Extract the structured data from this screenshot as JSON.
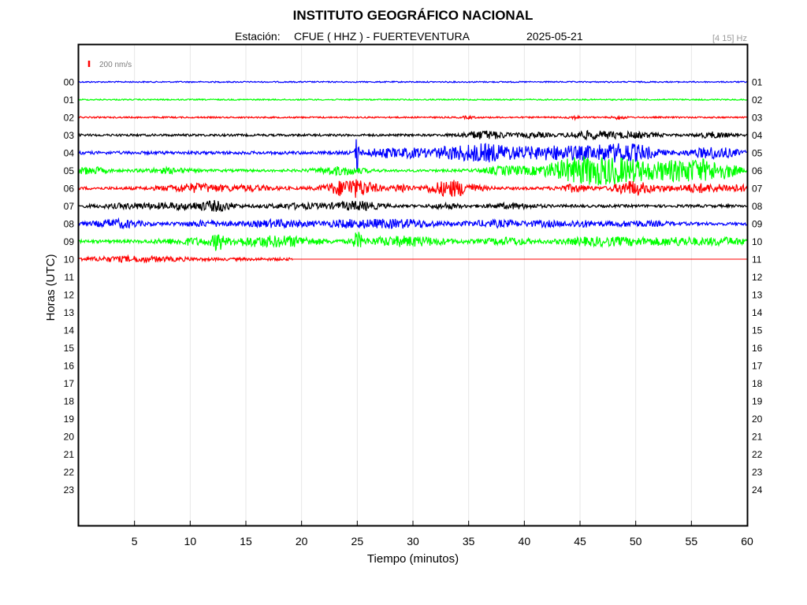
{
  "header": {
    "title": "INSTITUTO GEOGRÁFICO NACIONAL",
    "station_label": "Estación:",
    "station": "CFUE ( HHZ ) - FUERTEVENTURA",
    "date": "2025-05-21",
    "filter": "[4 15] Hz"
  },
  "scale_bar": {
    "label": "200 nm/s",
    "color": "#ff0000"
  },
  "chart_data": {
    "type": "line",
    "xlabel": "Tiempo (minutos)",
    "ylabel": "Horas (UTC)",
    "xlim": [
      0,
      60
    ],
    "x_ticks": [
      5,
      10,
      15,
      20,
      25,
      30,
      35,
      40,
      45,
      50,
      55,
      60
    ],
    "grid": true,
    "left_tick_labels": [
      "00",
      "01",
      "02",
      "03",
      "04",
      "05",
      "06",
      "07",
      "08",
      "09",
      "10",
      "11",
      "12",
      "13",
      "14",
      "15",
      "16",
      "17",
      "18",
      "19",
      "20",
      "21",
      "22",
      "23"
    ],
    "right_tick_labels": [
      "01",
      "02",
      "03",
      "04",
      "05",
      "06",
      "07",
      "08",
      "09",
      "10",
      "11",
      "12",
      "13",
      "14",
      "15",
      "16",
      "17",
      "18",
      "19",
      "20",
      "21",
      "22",
      "23",
      "24"
    ],
    "color_cycle": [
      "#0000ff",
      "#00ff00",
      "#ff0000",
      "#000000"
    ],
    "series": [
      {
        "hour": 0,
        "color": "#0000ff",
        "end_minute": 60,
        "base_amp": 0.25,
        "events": []
      },
      {
        "hour": 1,
        "color": "#00ff00",
        "end_minute": 60,
        "base_amp": 0.25,
        "events": []
      },
      {
        "hour": 2,
        "color": "#ff0000",
        "end_minute": 60,
        "base_amp": 0.3,
        "events": [
          [
            35,
            0.4,
            0.4
          ],
          [
            44.5,
            0.4,
            0.5
          ],
          [
            48.5,
            0.4,
            0.6
          ]
        ]
      },
      {
        "hour": 3,
        "color": "#000000",
        "end_minute": 60,
        "base_amp": 0.45,
        "events": [
          [
            36.5,
            1.5,
            1.5
          ],
          [
            41,
            1,
            0.8
          ],
          [
            45,
            1,
            1
          ],
          [
            47,
            1.2,
            1
          ],
          [
            50,
            1.5,
            0.9
          ],
          [
            57,
            1,
            1
          ]
        ]
      },
      {
        "hour": 4,
        "color": "#0000ff",
        "end_minute": 60,
        "base_amp": 0.6,
        "events": [
          [
            25,
            0.1,
            8
          ],
          [
            27.5,
            1.5,
            1.5
          ],
          [
            30,
            0.8,
            1
          ],
          [
            33,
            1.5,
            1.5
          ],
          [
            36.5,
            2,
            3
          ],
          [
            41,
            2,
            1.5
          ],
          [
            43.5,
            1.5,
            1.5
          ],
          [
            47.5,
            2,
            2.5
          ],
          [
            50,
            1.5,
            2
          ],
          [
            57,
            1.5,
            2
          ]
        ]
      },
      {
        "hour": 5,
        "color": "#00ff00",
        "end_minute": 60,
        "base_amp": 0.5,
        "events": [
          [
            1,
            1,
            1.2
          ],
          [
            8,
            1.5,
            0.8
          ],
          [
            23.5,
            1.5,
            1.5
          ],
          [
            38.5,
            1.5,
            1.5
          ],
          [
            44,
            2,
            3
          ],
          [
            46.5,
            2,
            2.5
          ],
          [
            49.5,
            2.5,
            3.5
          ],
          [
            54,
            1.5,
            3
          ],
          [
            56,
            1,
            2.5
          ],
          [
            58,
            1,
            2.5
          ]
        ]
      },
      {
        "hour": 6,
        "color": "#ff0000",
        "end_minute": 60,
        "base_amp": 0.55,
        "events": [
          [
            10.5,
            2,
            1.5
          ],
          [
            15.5,
            1.5,
            0.8
          ],
          [
            24.5,
            1.5,
            3.5
          ],
          [
            29,
            0.5,
            1.5
          ],
          [
            33.5,
            1.5,
            3
          ],
          [
            44.5,
            1,
            1.2
          ],
          [
            49.5,
            1,
            2.5
          ],
          [
            52,
            1.5,
            0.8
          ],
          [
            55.5,
            1,
            1.3
          ],
          [
            58.5,
            1.5,
            1.2
          ]
        ]
      },
      {
        "hour": 7,
        "color": "#000000",
        "end_minute": 60,
        "base_amp": 0.55,
        "events": [
          [
            5,
            2,
            0.8
          ],
          [
            10,
            2,
            1
          ],
          [
            12.5,
            1,
            1.3
          ],
          [
            20,
            2,
            0.8
          ],
          [
            25,
            1.5,
            1.5
          ],
          [
            33,
            1,
            0.8
          ],
          [
            39,
            1.5,
            0.8
          ]
        ]
      },
      {
        "hour": 8,
        "color": "#0000ff",
        "end_minute": 60,
        "base_amp": 0.6,
        "events": [
          [
            3.5,
            1.5,
            1.4
          ],
          [
            11.5,
            1.5,
            0.8
          ],
          [
            18,
            2,
            1.2
          ],
          [
            24,
            1.5,
            1
          ],
          [
            27.5,
            2,
            1.2
          ],
          [
            30.5,
            1.5,
            0.8
          ],
          [
            37.5,
            2,
            1
          ],
          [
            42,
            1,
            0.8
          ],
          [
            45,
            1,
            1
          ],
          [
            50,
            2,
            0.8
          ]
        ]
      },
      {
        "hour": 9,
        "color": "#00ff00",
        "end_minute": 60,
        "base_amp": 0.6,
        "events": [
          [
            12.5,
            0.3,
            3
          ],
          [
            10,
            2,
            1
          ],
          [
            15.5,
            2,
            1.2
          ],
          [
            19,
            2,
            1.5
          ],
          [
            25,
            0.3,
            3
          ],
          [
            28,
            2,
            1.2
          ],
          [
            31,
            2,
            1
          ],
          [
            38.5,
            1.5,
            1.2
          ],
          [
            46,
            2,
            1.2
          ],
          [
            50,
            2,
            1
          ],
          [
            54,
            1.5,
            1.2
          ],
          [
            58,
            1.5,
            1.2
          ]
        ]
      },
      {
        "hour": 10,
        "color": "#ff0000",
        "end_minute": 19.2,
        "base_amp": 0.55,
        "events": [
          [
            5,
            3,
            0.8
          ]
        ]
      }
    ]
  }
}
